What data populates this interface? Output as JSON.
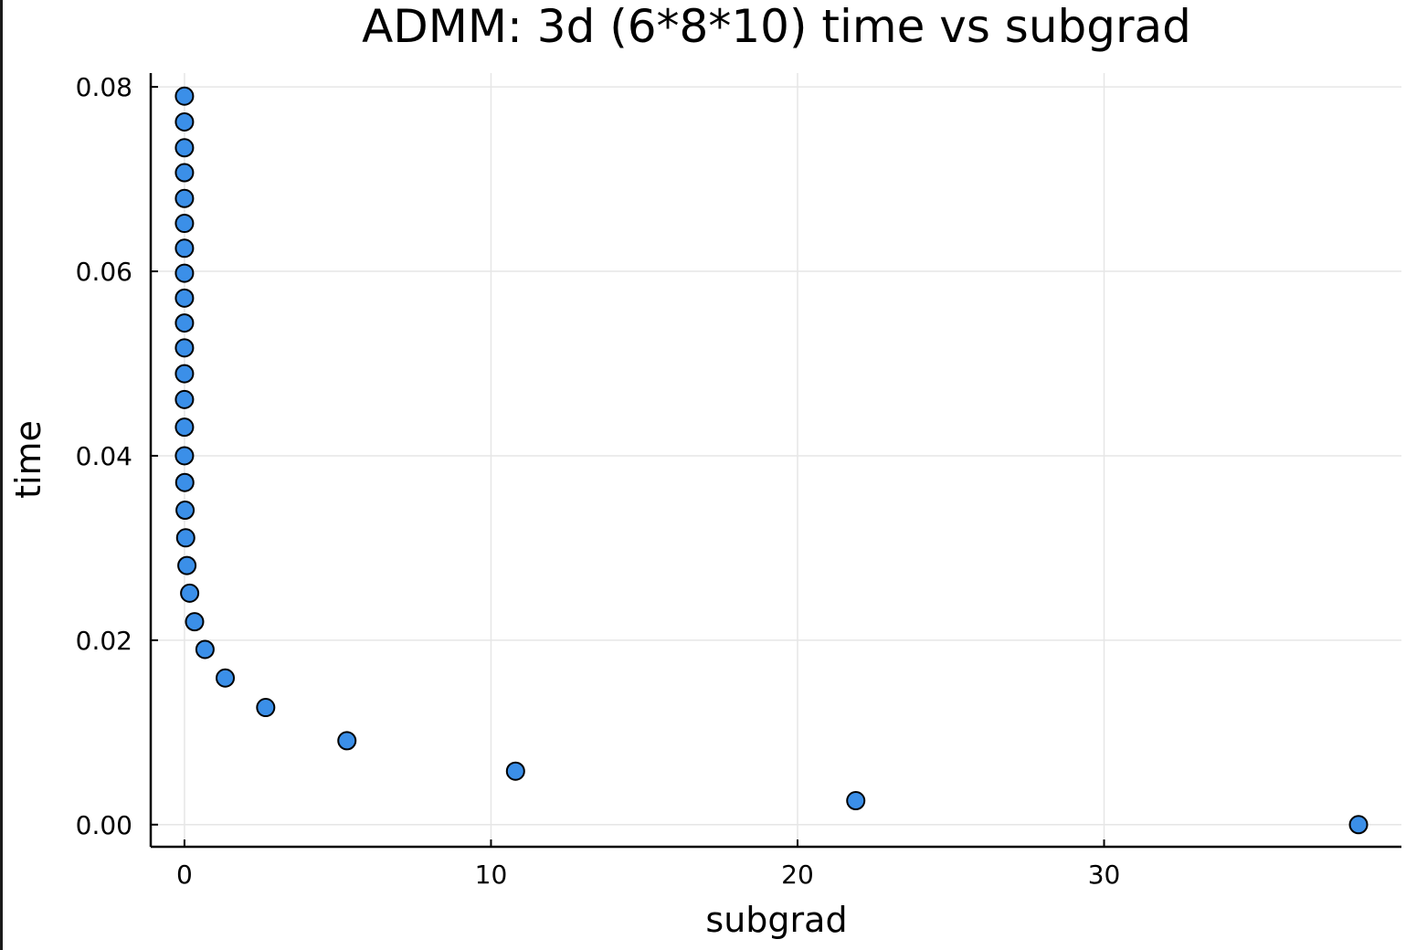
{
  "chart_data": {
    "type": "scatter",
    "title": "ADMM: 3d (6*8*10) time vs subgrad",
    "xlabel": "subgrad",
    "ylabel": "time",
    "xlim": [
      -1.1,
      39.7
    ],
    "ylim": [
      -0.0024,
      0.0815
    ],
    "xticks": [
      0,
      10,
      20,
      30
    ],
    "xtick_labels": [
      "0",
      "10",
      "20",
      "30"
    ],
    "yticks": [
      0.0,
      0.02,
      0.04,
      0.06,
      0.08
    ],
    "ytick_labels": [
      "0.00",
      "0.02",
      "0.04",
      "0.06",
      "0.08"
    ],
    "grid": true,
    "legend": "none",
    "marker_color": "#3b8fe8",
    "series": [
      {
        "x": [
          38.3,
          21.9,
          10.8,
          5.3,
          2.65,
          1.33,
          0.67,
          0.33,
          0.17,
          0.08,
          0.04,
          0.02,
          0.01,
          0.0,
          0.0,
          0.0,
          0.0,
          0.0,
          0.0,
          0.0,
          0.0,
          0.0,
          0.0,
          0.0,
          0.0,
          0.0,
          0.0,
          0.0
        ],
        "y": [
          0.0,
          0.0026,
          0.0058,
          0.0091,
          0.0127,
          0.0159,
          0.019,
          0.022,
          0.0251,
          0.0281,
          0.0311,
          0.0341,
          0.0371,
          0.04,
          0.0431,
          0.0461,
          0.0489,
          0.0517,
          0.0544,
          0.0571,
          0.0598,
          0.0625,
          0.0652,
          0.0679,
          0.0707,
          0.0734,
          0.0762,
          0.079
        ]
      }
    ]
  }
}
